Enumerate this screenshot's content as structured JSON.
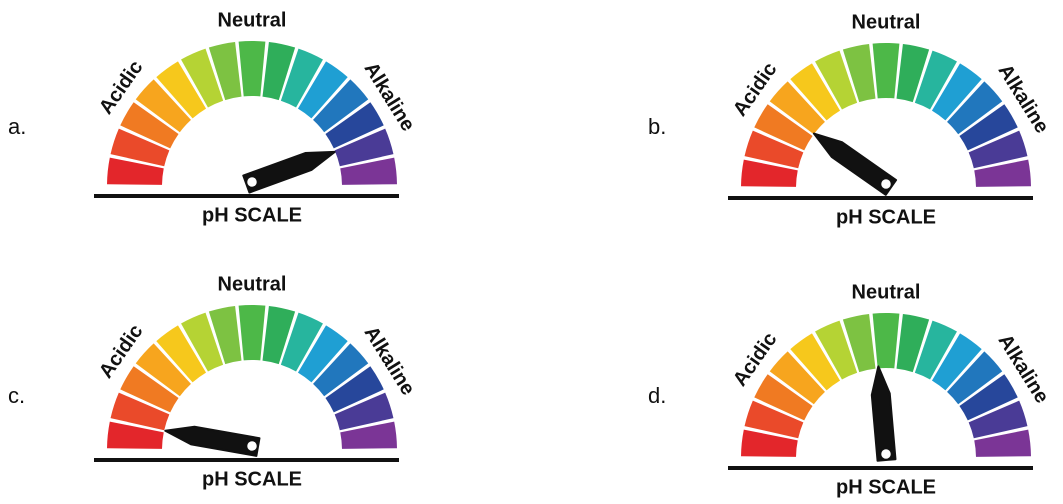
{
  "gauges": [
    {
      "letter": "a.",
      "top": "Neutral",
      "left": "Acidic",
      "right": "Alkaline",
      "bottom": "pH SCALE"
    },
    {
      "letter": "b.",
      "top": "Neutral",
      "left": "Acidic",
      "right": "Alkaline",
      "bottom": "pH SCALE"
    },
    {
      "letter": "c.",
      "top": "Neutral",
      "left": "Acidic",
      "right": "Alkaline",
      "bottom": "pH SCALE"
    },
    {
      "letter": "d.",
      "top": "Neutral",
      "left": "Acidic",
      "right": "Alkaline",
      "bottom": "pH SCALE"
    }
  ]
}
